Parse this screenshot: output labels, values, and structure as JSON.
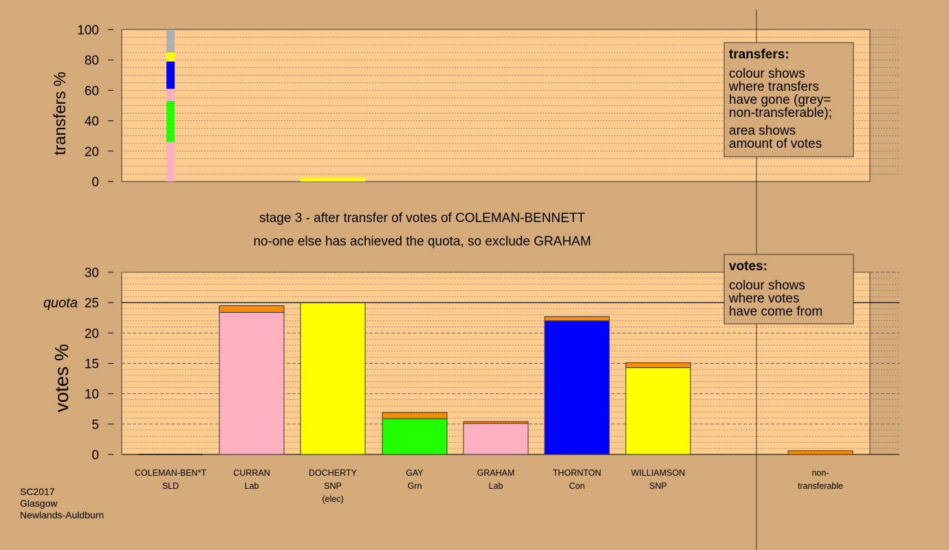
{
  "chart_data": [
    {
      "type": "bar",
      "title": "transfers",
      "ylabel": "transfers %",
      "ylim": [
        0,
        100
      ],
      "yticks": [
        0,
        20,
        40,
        60,
        80,
        100
      ],
      "segments": [
        {
          "category": "COLEMAN-BEN*T",
          "from": 0,
          "to": 26,
          "color": "#ffb0c0"
        },
        {
          "category": "COLEMAN-BEN*T",
          "from": 26,
          "to": 53,
          "color": "#22ff00"
        },
        {
          "category": "COLEMAN-BEN*T",
          "from": 53,
          "to": 61,
          "color": "#ffb0c0"
        },
        {
          "category": "COLEMAN-BEN*T",
          "from": 61,
          "to": 79,
          "color": "#0000ff"
        },
        {
          "category": "COLEMAN-BEN*T",
          "from": 79,
          "to": 85,
          "color": "#ffff00"
        },
        {
          "category": "COLEMAN-BEN*T",
          "from": 85,
          "to": 100,
          "color": "#b0b0b0"
        },
        {
          "category": "DOCHERTY",
          "from": 0,
          "to": 2.5,
          "color": "#ffff00"
        }
      ]
    },
    {
      "type": "bar",
      "title": "votes",
      "ylabel": "votes %",
      "ylim": [
        0,
        30
      ],
      "yticks": [
        0,
        5,
        10,
        15,
        20,
        25,
        30
      ],
      "quota": 25,
      "quota_label": "quota",
      "categories": [
        "COLEMAN-BEN*T",
        "CURRAN",
        "DOCHERTY",
        "GAY",
        "GRAHAM",
        "THORNTON",
        "WILLIAMSON",
        "non-transferable"
      ],
      "series": [
        {
          "values": [
            0,
            23.4,
            25.0,
            5.9,
            5.1,
            22.0,
            14.3,
            0
          ],
          "colors": [
            "#ffb0c0",
            "#ffb0c0",
            "#ffff00",
            "#22ff00",
            "#ffb0c0",
            "#0000ff",
            "#ffff00",
            "#ff8c00"
          ]
        },
        {
          "values": [
            0,
            1.1,
            0,
            1.0,
            0.3,
            0.7,
            0.8,
            0.6
          ],
          "color": "#ff8c00"
        }
      ]
    }
  ],
  "labels": {
    "top_title": "stage 3 - after transfer of votes of COLEMAN-BENNETT",
    "sub_title": "no-one else has achieved the quota, so exclude GRAHAM"
  },
  "candidates": [
    {
      "name": "COLEMAN-BEN*T",
      "party": "SLD",
      "note": ""
    },
    {
      "name": "CURRAN",
      "party": "Lab",
      "note": ""
    },
    {
      "name": "DOCHERTY",
      "party": "SNP",
      "note": "(elec)"
    },
    {
      "name": "GAY",
      "party": "Grn",
      "note": ""
    },
    {
      "name": "GRAHAM",
      "party": "Lab",
      "note": ""
    },
    {
      "name": "THORNTON",
      "party": "Con",
      "note": ""
    },
    {
      "name": "WILLIAMSON",
      "party": "SNP",
      "note": ""
    },
    {
      "name": "non-",
      "party": "transferable",
      "note": ""
    }
  ],
  "legend_transfers": {
    "heading": "transfers:",
    "lines": [
      "colour shows",
      "where transfers",
      "have gone (grey=",
      "non-transferable);",
      "area shows",
      "amount of votes"
    ]
  },
  "legend_votes": {
    "heading": "votes:",
    "lines": [
      "colour shows",
      "where votes",
      "have come from"
    ]
  },
  "footer": {
    "lines": [
      "SC2017",
      "Glasgow",
      "Newlands-Auldburn"
    ]
  },
  "colors": {
    "background": "#d4aa78",
    "plot_bg": "#ffcc90"
  }
}
